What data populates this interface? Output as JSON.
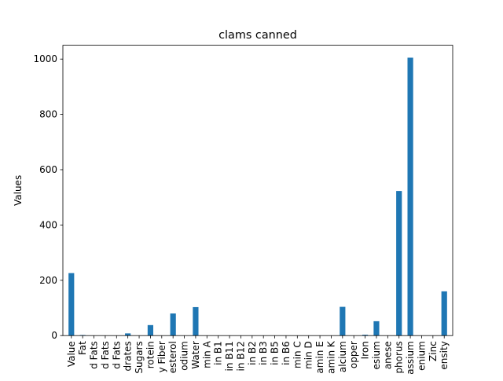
{
  "chart_data": {
    "type": "bar",
    "title": "clams canned",
    "xlabel": "",
    "ylabel": "Values",
    "ylim": [
      0,
      1050
    ],
    "yticks": [
      0,
      200,
      400,
      600,
      800,
      1000
    ],
    "ytick_labels": [
      "0",
      "200",
      "400",
      "600",
      "800",
      "1000"
    ],
    "grid": false,
    "legend": "none",
    "bar_color": "#1f77b4",
    "categories": [
      "Value",
      "Fat",
      "d Fats",
      "d Fats",
      "d Fats",
      "drates",
      "Sugars",
      "rotein",
      "y Fiber",
      "esterol",
      "odium",
      "Water",
      "min A",
      "in B1",
      "in B11",
      "in B12",
      "in B2",
      "in B3",
      "in B5",
      "in B6",
      "min C",
      "min D",
      "amin E",
      "amin K",
      "alcium",
      "opper",
      "Iron",
      "esium",
      "anese",
      "phorus",
      "assium",
      "enium",
      "Zinc",
      "ensity"
    ],
    "values": [
      226,
      2,
      0,
      0,
      0,
      8,
      0,
      38,
      0,
      80,
      0,
      103,
      0,
      0,
      0,
      0,
      0,
      0,
      0,
      0,
      0,
      0,
      0,
      0,
      104,
      0,
      3,
      52,
      0,
      523,
      1005,
      0,
      0,
      160
    ]
  }
}
